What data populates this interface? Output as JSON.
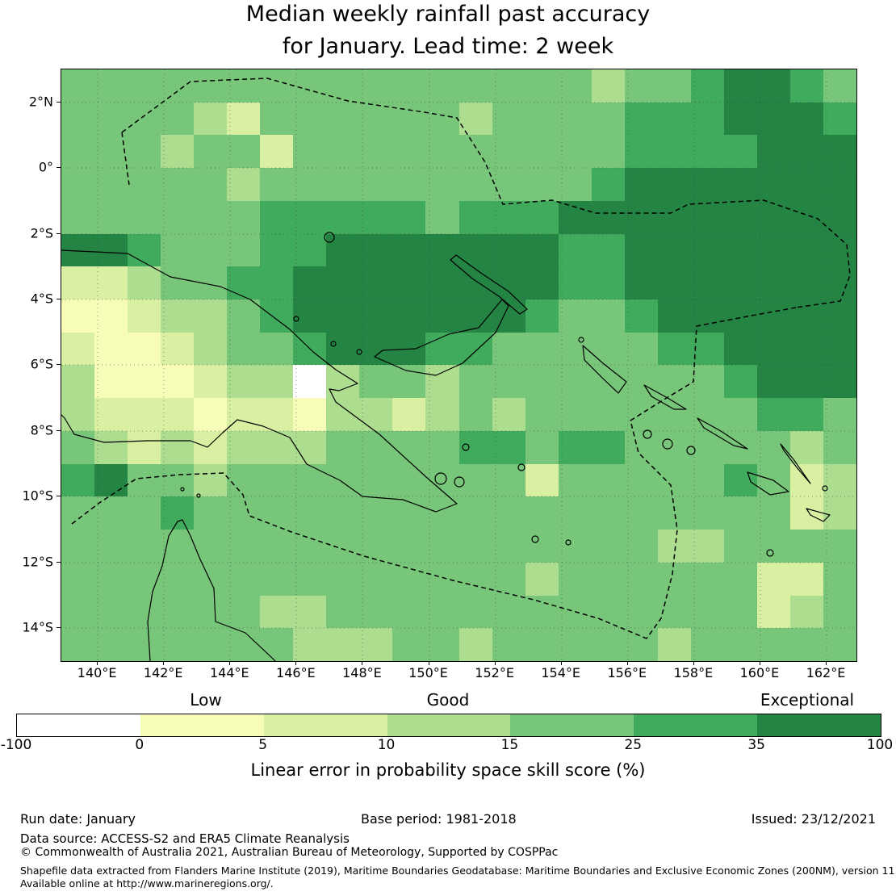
{
  "title": {
    "line1": "Median weekly rainfall past accuracy",
    "line2": "for January. Lead time: 2 week"
  },
  "axes": {
    "y_ticks": [
      "2°N",
      "0°",
      "2°S",
      "4°S",
      "6°S",
      "8°S",
      "10°S",
      "12°S",
      "14°S"
    ],
    "x_ticks": [
      "140°E",
      "142°E",
      "144°E",
      "146°E",
      "148°E",
      "150°E",
      "152°E",
      "154°E",
      "156°E",
      "158°E",
      "160°E",
      "162°E"
    ]
  },
  "colorbar": {
    "categories": [
      "Low",
      "Good",
      "Exceptional"
    ],
    "tick_labels": [
      "-100",
      "0",
      "5",
      "10",
      "15",
      "25",
      "35",
      "100"
    ],
    "caption": "Linear error in probability space skill score (%)"
  },
  "footer": {
    "run_date": "Run date: January",
    "base_period": "Base period: 1981-2018",
    "issued": "Issued: 23/12/2021",
    "data_source": "Data source: ACCESS-S2 and ERA5 Climate Reanalysis",
    "copyright": "© Commonwealth of Australia 2021, Australian Bureau of Meteorology, Supported by COSPPac",
    "shapefile_line1": "Shapefile data extracted from Flanders Marine Institute (2019), Maritime Boundaries Geodatabase: Maritime Boundaries and Exclusive Economic Zones (200NM), version 11.",
    "shapefile_line2": "Available online at http://www.marineregions.org/."
  },
  "chart_data": {
    "type": "heatmap",
    "title": "Median weekly rainfall past accuracy for January. Lead time: 2 week",
    "variable": "Linear error in probability space skill score (%)",
    "lon_range_deg_east": [
      138.9,
      162.9
    ],
    "lat_range_deg": [
      3,
      -15
    ],
    "cell_size_deg": 1,
    "skill_bins": [
      -100,
      0,
      5,
      10,
      15,
      25,
      35,
      100
    ],
    "bin_categories": {
      "low": "0-5",
      "good": "10-15",
      "exceptional": "35-100"
    },
    "palette": [
      "#ffffff",
      "#f7fcb9",
      "#d9f0a3",
      "#addd8e",
      "#78c679",
      "#41ab5d",
      "#238443"
    ],
    "grid_note": "values are palette bin indices 0-6 (0 = <0%, 6 = 35-100%), rows north to south (3N to 15S), cols west to east (138.9E to 162.9E)",
    "grid": [
      [
        4,
        4,
        4,
        4,
        4,
        4,
        4,
        4,
        4,
        4,
        4,
        4,
        4,
        4,
        4,
        4,
        3,
        4,
        4,
        5,
        6,
        6,
        5,
        4
      ],
      [
        4,
        4,
        4,
        4,
        3,
        2,
        4,
        4,
        4,
        4,
        4,
        4,
        3,
        4,
        4,
        4,
        4,
        5,
        5,
        5,
        6,
        6,
        6,
        5
      ],
      [
        4,
        4,
        4,
        3,
        4,
        4,
        2,
        4,
        4,
        4,
        4,
        4,
        4,
        4,
        4,
        4,
        4,
        5,
        5,
        5,
        5,
        6,
        6,
        6
      ],
      [
        4,
        4,
        4,
        4,
        4,
        3,
        4,
        4,
        4,
        4,
        4,
        4,
        4,
        4,
        4,
        4,
        5,
        6,
        6,
        6,
        6,
        6,
        6,
        6
      ],
      [
        4,
        4,
        4,
        4,
        4,
        4,
        5,
        5,
        5,
        5,
        5,
        4,
        5,
        5,
        5,
        6,
        6,
        6,
        6,
        6,
        6,
        6,
        6,
        6
      ],
      [
        6,
        6,
        5,
        4,
        4,
        4,
        5,
        5,
        6,
        6,
        6,
        6,
        6,
        6,
        6,
        5,
        5,
        6,
        6,
        6,
        6,
        6,
        6,
        6
      ],
      [
        2,
        2,
        3,
        4,
        4,
        5,
        5,
        6,
        6,
        6,
        6,
        6,
        6,
        6,
        6,
        5,
        5,
        6,
        6,
        6,
        6,
        6,
        6,
        6
      ],
      [
        1,
        1,
        2,
        3,
        3,
        4,
        5,
        6,
        6,
        6,
        6,
        6,
        6,
        6,
        5,
        4,
        4,
        5,
        6,
        6,
        6,
        6,
        6,
        6
      ],
      [
        2,
        1,
        1,
        2,
        3,
        4,
        4,
        5,
        6,
        6,
        6,
        5,
        5,
        4,
        4,
        4,
        4,
        4,
        5,
        5,
        6,
        6,
        6,
        6
      ],
      [
        3,
        1,
        1,
        1,
        2,
        3,
        3,
        0,
        3,
        4,
        4,
        3,
        4,
        4,
        4,
        4,
        4,
        4,
        4,
        4,
        5,
        6,
        6,
        6
      ],
      [
        3,
        2,
        2,
        2,
        1,
        2,
        2,
        1,
        3,
        3,
        2,
        3,
        4,
        3,
        4,
        4,
        4,
        4,
        4,
        4,
        4,
        5,
        5,
        4
      ],
      [
        4,
        3,
        2,
        3,
        2,
        3,
        3,
        3,
        4,
        4,
        4,
        4,
        5,
        5,
        4,
        5,
        5,
        4,
        4,
        4,
        4,
        4,
        3,
        4
      ],
      [
        5,
        6,
        4,
        4,
        3,
        4,
        4,
        4,
        4,
        4,
        4,
        4,
        4,
        4,
        2,
        4,
        4,
        4,
        4,
        4,
        5,
        4,
        2,
        3
      ],
      [
        4,
        4,
        4,
        5,
        4,
        4,
        4,
        4,
        4,
        4,
        4,
        4,
        4,
        4,
        4,
        4,
        4,
        4,
        4,
        4,
        4,
        4,
        2,
        3
      ],
      [
        4,
        4,
        4,
        4,
        4,
        4,
        4,
        4,
        4,
        4,
        4,
        4,
        4,
        4,
        4,
        4,
        4,
        4,
        3,
        3,
        4,
        4,
        4,
        4
      ],
      [
        4,
        4,
        4,
        4,
        4,
        4,
        4,
        4,
        4,
        4,
        4,
        4,
        4,
        4,
        3,
        4,
        4,
        4,
        4,
        4,
        4,
        2,
        2,
        4
      ],
      [
        4,
        4,
        4,
        4,
        4,
        4,
        3,
        3,
        4,
        4,
        4,
        4,
        4,
        4,
        4,
        4,
        4,
        4,
        4,
        4,
        4,
        2,
        3,
        4
      ],
      [
        4,
        4,
        4,
        4,
        4,
        4,
        4,
        3,
        3,
        3,
        4,
        4,
        3,
        4,
        4,
        4,
        4,
        4,
        3,
        4,
        4,
        4,
        4,
        4
      ]
    ]
  }
}
